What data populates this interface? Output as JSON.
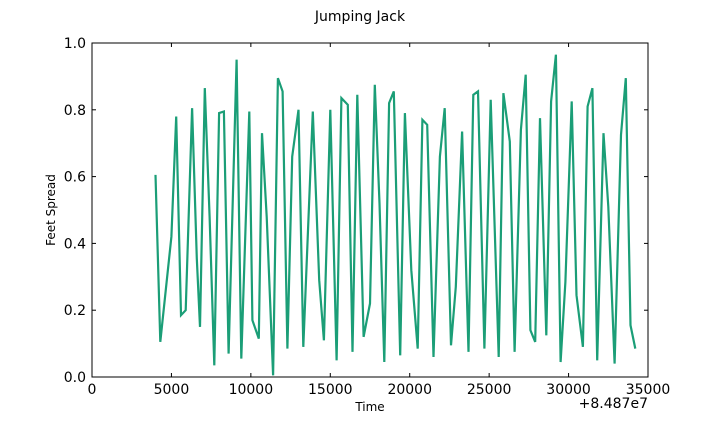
{
  "chart_data": {
    "type": "line",
    "title": "Jumping Jack",
    "xlabel": "Time",
    "ylabel": "Feet Spread",
    "x_offset_label": "+8.487e7",
    "xlim": [
      0,
      35000
    ],
    "ylim": [
      0.0,
      1.0
    ],
    "x_ticks": [
      0,
      5000,
      10000,
      15000,
      20000,
      25000,
      30000,
      35000
    ],
    "x_tick_labels": [
      "0",
      "5000",
      "10000",
      "15000",
      "20000",
      "25000",
      "30000",
      "35000"
    ],
    "y_ticks": [
      0.0,
      0.2,
      0.4,
      0.6,
      0.8,
      1.0
    ],
    "y_tick_labels": [
      "0.0",
      "0.2",
      "0.4",
      "0.6",
      "0.8",
      "1.0"
    ],
    "grid": false,
    "series": [
      {
        "color": "#1b9e77",
        "x": [
          4000,
          4300,
          5000,
          5300,
          5600,
          5900,
          6300,
          6600,
          6800,
          7100,
          7400,
          7700,
          8000,
          8300,
          8600,
          9100,
          9400,
          9900,
          10100,
          10500,
          10700,
          11000,
          11400,
          11700,
          12000,
          12300,
          12600,
          13000,
          13300,
          13900,
          14300,
          14600,
          15000,
          15400,
          15700,
          16100,
          16400,
          16700,
          17100,
          17500,
          17800,
          18100,
          18400,
          18700,
          19000,
          19400,
          19700,
          20100,
          20500,
          20800,
          21100,
          21500,
          21900,
          22200,
          22600,
          22900,
          23300,
          23700,
          24000,
          24300,
          24700,
          25100,
          25600,
          25900,
          26300,
          26600,
          27000,
          27300,
          27600,
          27900,
          28200,
          28600,
          28900,
          29200,
          29500,
          29800,
          30200,
          30500,
          30900,
          31200,
          31500,
          31800,
          32200,
          32500,
          32900,
          33300,
          33600,
          33900,
          34200
        ],
        "y": [
          0.605,
          0.105,
          0.42,
          0.78,
          0.185,
          0.2,
          0.805,
          0.355,
          0.15,
          0.865,
          0.48,
          0.035,
          0.79,
          0.795,
          0.07,
          0.95,
          0.055,
          0.795,
          0.17,
          0.115,
          0.73,
          0.48,
          0.005,
          0.895,
          0.855,
          0.085,
          0.66,
          0.8,
          0.09,
          0.795,
          0.29,
          0.11,
          0.8,
          0.05,
          0.835,
          0.815,
          0.075,
          0.845,
          0.12,
          0.22,
          0.875,
          0.52,
          0.045,
          0.82,
          0.855,
          0.065,
          0.79,
          0.32,
          0.085,
          0.77,
          0.755,
          0.06,
          0.66,
          0.805,
          0.095,
          0.27,
          0.735,
          0.075,
          0.845,
          0.855,
          0.085,
          0.83,
          0.06,
          0.85,
          0.705,
          0.075,
          0.74,
          0.905,
          0.14,
          0.105,
          0.775,
          0.125,
          0.825,
          0.965,
          0.045,
          0.285,
          0.825,
          0.245,
          0.09,
          0.81,
          0.865,
          0.05,
          0.73,
          0.51,
          0.04,
          0.725,
          0.895,
          0.155,
          0.085
        ]
      }
    ]
  }
}
